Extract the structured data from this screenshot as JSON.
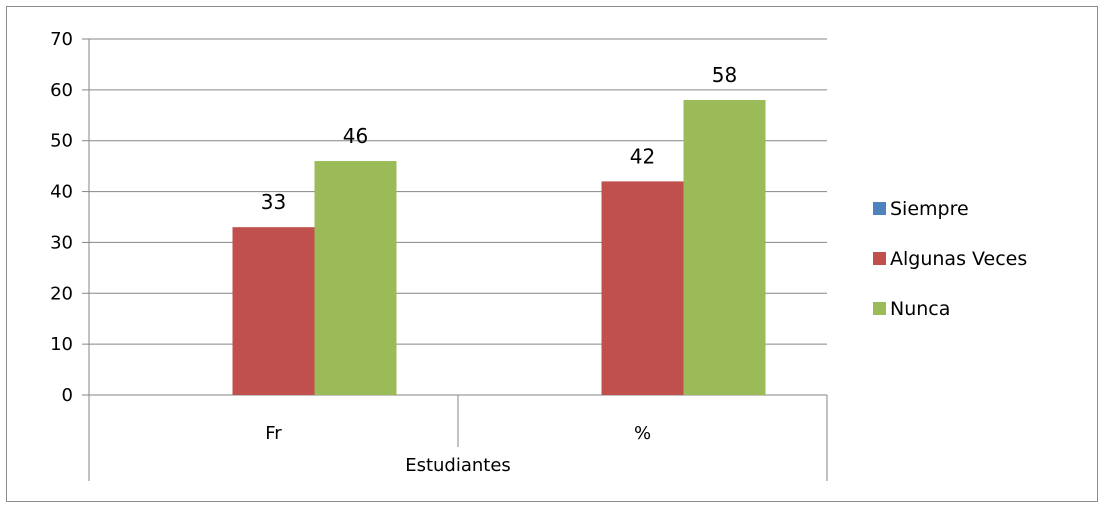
{
  "chart_data": {
    "type": "bar",
    "title": "",
    "xlabel": "",
    "ylabel": "",
    "ylim": [
      0,
      70
    ],
    "yticks": [
      0,
      10,
      20,
      30,
      40,
      50,
      60,
      70
    ],
    "categories": [
      "Fr",
      "%"
    ],
    "group_label": "Estudiantes",
    "series": [
      {
        "name": "Siempre",
        "values": [
          0,
          0
        ],
        "color": "#4f81bd"
      },
      {
        "name": "Algunas Veces",
        "values": [
          33,
          42
        ],
        "color": "#c0504d"
      },
      {
        "name": "Nunca",
        "values": [
          46,
          58
        ],
        "color": "#9bbb59"
      }
    ],
    "data_labels": [
      {
        "series": 1,
        "category": 0,
        "text": "33"
      },
      {
        "series": 2,
        "category": 0,
        "text": "46"
      },
      {
        "series": 1,
        "category": 1,
        "text": "42"
      },
      {
        "series": 2,
        "category": 1,
        "text": "58"
      }
    ],
    "grid": true,
    "legend_position": "right",
    "gridline_color": "#868686"
  }
}
